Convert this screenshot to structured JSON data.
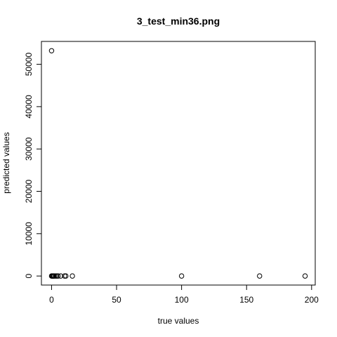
{
  "chart_data": {
    "type": "scatter",
    "title": "3_test_min36.png",
    "xlabel": "true values",
    "ylabel": "predicted values",
    "xlim": [
      -7.8,
      202.8
    ],
    "ylim": [
      -2133,
      55400
    ],
    "xticks": [
      0,
      50,
      100,
      150,
      200
    ],
    "yticks": [
      0,
      10000,
      20000,
      30000,
      40000,
      50000
    ],
    "x": [
      0.0,
      0.0,
      0.5,
      1.0,
      1.5,
      2.0,
      3.0,
      4.0,
      5.0,
      7.0,
      10.0,
      11.0,
      16.0,
      100.0,
      160.0,
      195.0
    ],
    "y": [
      53200,
      0,
      0,
      0,
      0,
      0,
      0,
      0,
      0,
      0,
      0,
      0,
      0,
      0,
      0,
      0
    ],
    "grid": false
  }
}
